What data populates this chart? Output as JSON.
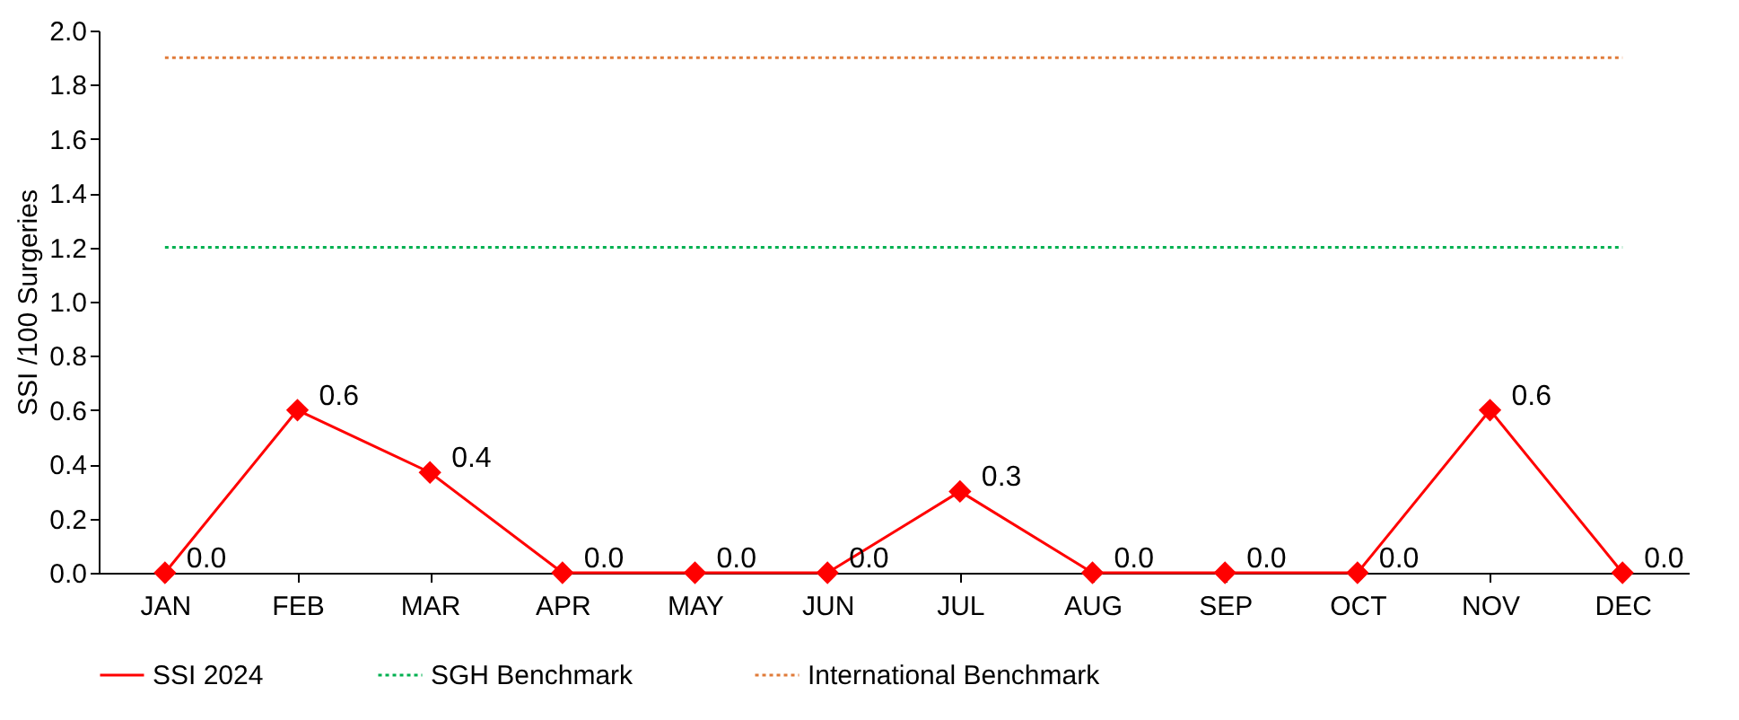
{
  "chart_data": {
    "type": "line",
    "ylabel": "SSI /100 Surgeries",
    "categories": [
      "JAN",
      "FEB",
      "MAR",
      "APR",
      "MAY",
      "JUN",
      "JUL",
      "AUG",
      "SEP",
      "OCT",
      "NOV",
      "DEC"
    ],
    "series": [
      {
        "name": "SSI 2024",
        "color": "#ff0000",
        "marker": "diamond",
        "values": [
          0,
          0.6,
          0.37,
          0,
          0,
          0,
          0.3,
          0,
          0,
          0,
          0.6,
          0
        ],
        "value_labels": [
          "0.0",
          "0.6",
          "0.4",
          "0.0",
          "0.0",
          "0.0",
          "0.3",
          "0.0",
          "0.0",
          "0.0",
          "0.6",
          "0.0"
        ]
      },
      {
        "name": "SGH  Benchmark",
        "color": "#00b050",
        "marker": "none",
        "line_style": "dotted",
        "values": [
          1.2,
          1.2,
          1.2,
          1.2,
          1.2,
          1.2,
          1.2,
          1.2,
          1.2,
          1.2,
          1.2,
          1.2
        ]
      },
      {
        "name": "International Benchmark",
        "color": "#e07b39",
        "marker": "none",
        "line_style": "dotted",
        "values": [
          1.9,
          1.9,
          1.9,
          1.9,
          1.9,
          1.9,
          1.9,
          1.9,
          1.9,
          1.9,
          1.9,
          1.9
        ]
      }
    ],
    "ylim": [
      0,
      2
    ],
    "yticks": [
      {
        "value": 0,
        "label": "0.0"
      },
      {
        "value": 0.2,
        "label": "0.2"
      },
      {
        "value": 0.4,
        "label": "0.4"
      },
      {
        "value": 0.6,
        "label": "0.6"
      },
      {
        "value": 0.8,
        "label": "0.8"
      },
      {
        "value": 1,
        "label": "1.0"
      },
      {
        "value": 1.2,
        "label": "1.2"
      },
      {
        "value": 1.4,
        "label": "1.4"
      },
      {
        "value": 1.6,
        "label": "1.6"
      },
      {
        "value": 1.8,
        "label": "1.8"
      },
      {
        "value": 2,
        "label": "2.0"
      }
    ],
    "grid": false,
    "legend": "bottom",
    "line_style": "solid"
  }
}
